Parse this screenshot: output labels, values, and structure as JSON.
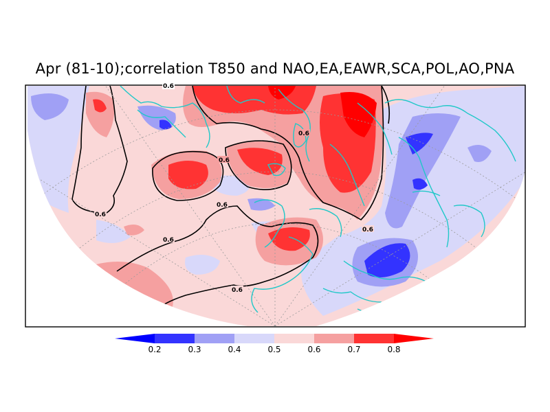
{
  "title": "Apr (81-10);correlation T850 and NAO,EA,EAWR,SCA,POL,AO,PNA",
  "contour_level_label": "0.6",
  "colorbar": {
    "ticks": [
      "0.2",
      "0.3",
      "0.4",
      "0.5",
      "0.6",
      "0.7",
      "0.8"
    ],
    "colors": [
      "#0000ff",
      "#3333ff",
      "#a0a0f5",
      "#d8d8fa",
      "#fad8d8",
      "#f5a0a0",
      "#ff3333",
      "#ff0000"
    ]
  },
  "colors": {
    "coastline": "#20c8c8",
    "contour": "#000000",
    "gridline": "#9a9a9a",
    "background_field": "#fad8d8"
  }
}
